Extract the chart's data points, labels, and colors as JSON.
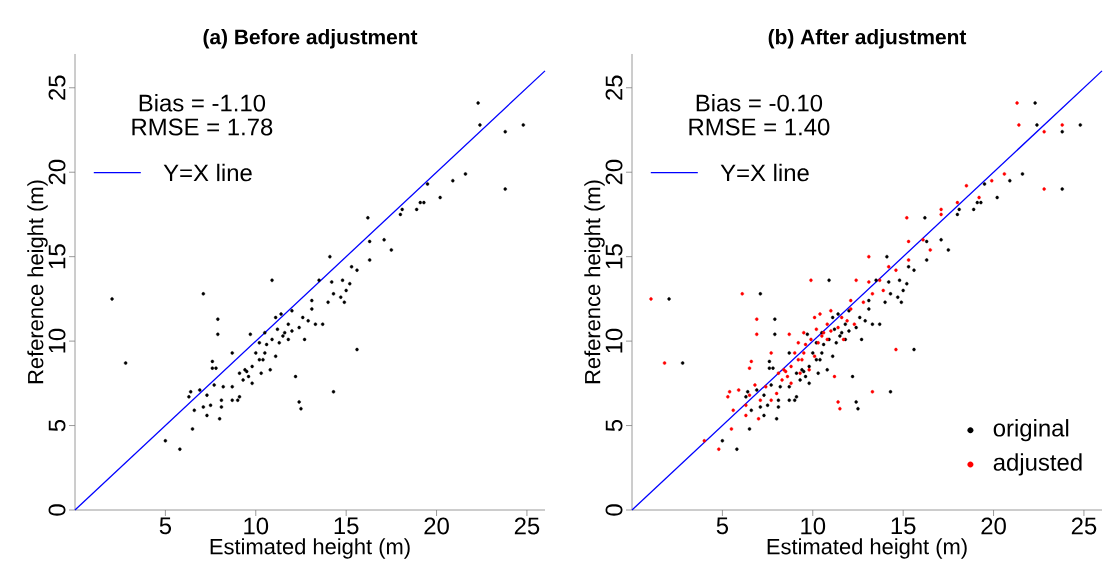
{
  "chart_data": [
    {
      "type": "scatter",
      "title": "(a) Before adjustment",
      "xlabel": "Estimated height (m)",
      "ylabel": "Reference height (m)",
      "annotations": [
        "Bias = -1.10",
        "RMSE = 1.78"
      ],
      "xlim": [
        0,
        26
      ],
      "ylim": [
        0,
        27
      ],
      "xticks": [
        5,
        10,
        15,
        20,
        25
      ],
      "yticks": [
        0,
        5,
        10,
        15,
        20,
        25
      ],
      "legend": "top left",
      "series": [
        {
          "type": "line",
          "name": "Y=X line",
          "marker": "none",
          "color": "#0000ff",
          "x": [
            0,
            26
          ],
          "values": [
            0,
            26
          ]
        },
        {
          "color": "#000000",
          "marker": "circle",
          "x": [
            2.05,
            2.8,
            5.0,
            5.8,
            6.5,
            6.6,
            6.3,
            6.4,
            6.9,
            7.1,
            7.1,
            7.3,
            7.5,
            7.3,
            7.7,
            7.6,
            7.8,
            7.6,
            7.9,
            7.9,
            8.0,
            8.1,
            8.1,
            8.2,
            8.7,
            8.7,
            9.0,
            9.1,
            8.7,
            9.1,
            9.4,
            9.6,
            9.8,
            9.7,
            10.0,
            10.2,
            10.4,
            10.5,
            10.8,
            10.9,
            10.9,
            11.1,
            11.2,
            11.4,
            11.3,
            11.6,
            11.8,
            12.0,
            12.2,
            12.4,
            12.5,
            12.4,
            12.6,
            12.7,
            13.1,
            13.3,
            13.7,
            13.5,
            14.0,
            14.1,
            14.2,
            14.3,
            14.3,
            14.7,
            14.8,
            14.9,
            15.0,
            15.2,
            15.3,
            15.6,
            15.6,
            16.2,
            16.3,
            16.3,
            17.1,
            17.5,
            18.1,
            18.0,
            18.9,
            19.1,
            19.3,
            19.5,
            20.2,
            20.9,
            21.6,
            22.3,
            22.4,
            23.8,
            23.8,
            24.8,
            9.3,
            9.5,
            10.2,
            10.6,
            11.5,
            12.0,
            10.5,
            10.3,
            11.8,
            12.9,
            13.1,
            11.1,
            9.8
          ],
          "values": [
            12.5,
            8.7,
            4.1,
            3.6,
            4.8,
            5.9,
            6.7,
            7.0,
            7.1,
            12.8,
            6.1,
            5.6,
            6.2,
            6.8,
            7.4,
            8.4,
            8.4,
            8.8,
            10.4,
            11.3,
            5.4,
            6.1,
            6.5,
            7.3,
            9.3,
            6.5,
            6.5,
            6.7,
            7.3,
            8.1,
            8.3,
            7.9,
            8.5,
            10.4,
            9.3,
            9.9,
            8.9,
            9.3,
            8.3,
            13.6,
            10.1,
            9.1,
            10.7,
            11.6,
            9.9,
            10.5,
            11.0,
            11.8,
            7.9,
            6.4,
            6.0,
            10.8,
            11.4,
            10.1,
            11.9,
            11.0,
            11.0,
            13.6,
            12.3,
            15.0,
            13.5,
            7.0,
            12.8,
            12.6,
            13.6,
            12.3,
            13.0,
            13.4,
            14.4,
            14.2,
            9.5,
            17.3,
            15.9,
            14.8,
            16.0,
            15.4,
            17.8,
            17.5,
            17.8,
            18.2,
            18.2,
            19.3,
            18.5,
            19.5,
            19.9,
            24.1,
            22.8,
            22.4,
            19.0,
            22.8,
            7.7,
            8.2,
            8.9,
            9.8,
            10.3,
            10.6,
            10.5,
            8.1,
            10.1,
            11.2,
            12.4,
            11.4,
            7.5
          ]
        }
      ]
    },
    {
      "type": "scatter",
      "title": "(b) After adjustment",
      "xlabel": "Estimated height (m)",
      "ylabel": "Reference height (m)",
      "annotations": [
        "Bias = -0.10",
        "RMSE = 1.40"
      ],
      "xlim": [
        0,
        26
      ],
      "ylim": [
        0,
        27
      ],
      "xticks": [
        5,
        10,
        15,
        20,
        25
      ],
      "yticks": [
        0,
        5,
        10,
        15,
        20,
        25
      ],
      "legend": "bottom right",
      "series": [
        {
          "type": "line",
          "name": "Y=X line",
          "marker": "none",
          "color": "#0000ff",
          "x": [
            0,
            26
          ],
          "values": [
            0,
            26
          ]
        },
        {
          "name": "original",
          "color": "#000000",
          "marker": "circle",
          "x": [
            2.05,
            2.8,
            5.0,
            5.8,
            6.5,
            6.6,
            6.3,
            6.4,
            6.9,
            7.1,
            7.1,
            7.3,
            7.5,
            7.3,
            7.7,
            7.6,
            7.8,
            7.6,
            7.9,
            7.9,
            8.0,
            8.1,
            8.1,
            8.2,
            8.7,
            8.7,
            9.0,
            9.1,
            8.7,
            9.1,
            9.4,
            9.6,
            9.8,
            9.7,
            10.0,
            10.2,
            10.4,
            10.5,
            10.8,
            10.9,
            10.9,
            11.1,
            11.2,
            11.4,
            11.3,
            11.6,
            11.8,
            12.0,
            12.2,
            12.4,
            12.5,
            12.4,
            12.6,
            12.7,
            13.1,
            13.3,
            13.7,
            13.5,
            14.0,
            14.1,
            14.2,
            14.3,
            14.3,
            14.7,
            14.8,
            14.9,
            15.0,
            15.2,
            15.3,
            15.6,
            15.6,
            16.2,
            16.3,
            16.3,
            17.1,
            17.5,
            18.1,
            18.0,
            18.9,
            19.1,
            19.3,
            19.5,
            20.2,
            20.9,
            21.6,
            22.3,
            22.4,
            23.8,
            23.8,
            24.8,
            9.3,
            9.5,
            10.2,
            10.6,
            11.5,
            12.0,
            10.5,
            10.3,
            11.8,
            12.9,
            13.1,
            11.1,
            9.8
          ],
          "values": [
            12.5,
            8.7,
            4.1,
            3.6,
            4.8,
            5.9,
            6.7,
            7.0,
            7.1,
            12.8,
            6.1,
            5.6,
            6.2,
            6.8,
            7.4,
            8.4,
            8.4,
            8.8,
            10.4,
            11.3,
            5.4,
            6.1,
            6.5,
            7.3,
            9.3,
            6.5,
            6.5,
            6.7,
            7.3,
            8.1,
            8.3,
            7.9,
            8.5,
            10.4,
            9.3,
            9.9,
            8.9,
            9.3,
            8.3,
            13.6,
            10.1,
            9.1,
            10.7,
            11.6,
            9.9,
            10.5,
            11.0,
            11.8,
            7.9,
            6.4,
            6.0,
            10.8,
            11.4,
            10.1,
            11.9,
            11.0,
            11.0,
            13.6,
            12.3,
            15.0,
            13.5,
            7.0,
            12.8,
            12.6,
            13.6,
            12.3,
            13.0,
            13.4,
            14.4,
            14.2,
            9.5,
            17.3,
            15.9,
            14.8,
            16.0,
            15.4,
            17.8,
            17.5,
            17.8,
            18.2,
            18.2,
            19.3,
            18.5,
            19.5,
            19.9,
            24.1,
            22.8,
            22.4,
            19.0,
            22.8,
            7.7,
            8.2,
            8.9,
            9.8,
            10.3,
            10.6,
            10.5,
            8.1,
            10.1,
            11.2,
            12.4,
            11.4,
            7.5
          ]
        },
        {
          "name": "adjusted",
          "color": "#ff0000",
          "marker": "circle",
          "x": [
            1.05,
            1.8,
            4.8,
            4.0,
            5.5,
            5.6,
            5.3,
            5.4,
            6.1,
            5.9,
            6.3,
            6.3,
            6.5,
            6.8,
            6.5,
            6.6,
            6.9,
            6.9,
            7.0,
            7.1,
            7.4,
            7.7,
            7.7,
            8.0,
            8.1,
            8.4,
            8.7,
            8.6,
            8.8,
            9.0,
            9.2,
            9.4,
            9.5,
            9.8,
            9.9,
            9.9,
            10.1,
            10.2,
            10.4,
            10.3,
            10.6,
            10.8,
            11.0,
            11.2,
            11.4,
            11.5,
            11.4,
            11.6,
            11.7,
            12.1,
            12.3,
            12.4,
            12.8,
            13.1,
            13.1,
            13.3,
            13.3,
            13.7,
            13.9,
            14.2,
            14.6,
            14.6,
            15.2,
            15.3,
            15.3,
            16.1,
            16.5,
            17.1,
            17.1,
            18.0,
            18.5,
            19.2,
            19.9,
            20.6,
            21.3,
            21.4,
            22.8,
            22.8,
            23.8,
            8.3,
            8.5,
            9.2,
            9.6,
            10.5,
            11.0,
            9.5,
            9.3,
            10.8,
            11.9,
            12.1,
            10.1,
            8.8
          ],
          "values": [
            12.5,
            8.7,
            3.6,
            4.1,
            4.8,
            5.9,
            6.7,
            7.0,
            12.8,
            7.1,
            5.6,
            6.2,
            6.8,
            7.4,
            8.4,
            8.8,
            10.4,
            11.3,
            5.4,
            6.5,
            7.3,
            9.3,
            6.5,
            6.9,
            8.1,
            8.3,
            10.4,
            7.9,
            8.5,
            9.3,
            9.9,
            8.9,
            9.3,
            8.3,
            13.6,
            10.1,
            9.1,
            10.7,
            11.6,
            9.9,
            10.5,
            11.0,
            11.8,
            7.9,
            6.4,
            6.0,
            10.8,
            11.4,
            10.1,
            11.9,
            11.0,
            13.6,
            12.3,
            15.0,
            13.5,
            7.0,
            12.8,
            13.6,
            13.0,
            14.4,
            14.2,
            9.5,
            17.3,
            15.9,
            14.8,
            16.0,
            15.4,
            17.8,
            17.5,
            18.2,
            19.2,
            18.5,
            19.5,
            19.9,
            24.1,
            22.8,
            22.4,
            19.0,
            22.8,
            7.7,
            8.2,
            8.9,
            9.8,
            10.3,
            10.6,
            10.5,
            8.1,
            10.1,
            11.2,
            12.4,
            11.4,
            7.5
          ]
        }
      ]
    }
  ]
}
